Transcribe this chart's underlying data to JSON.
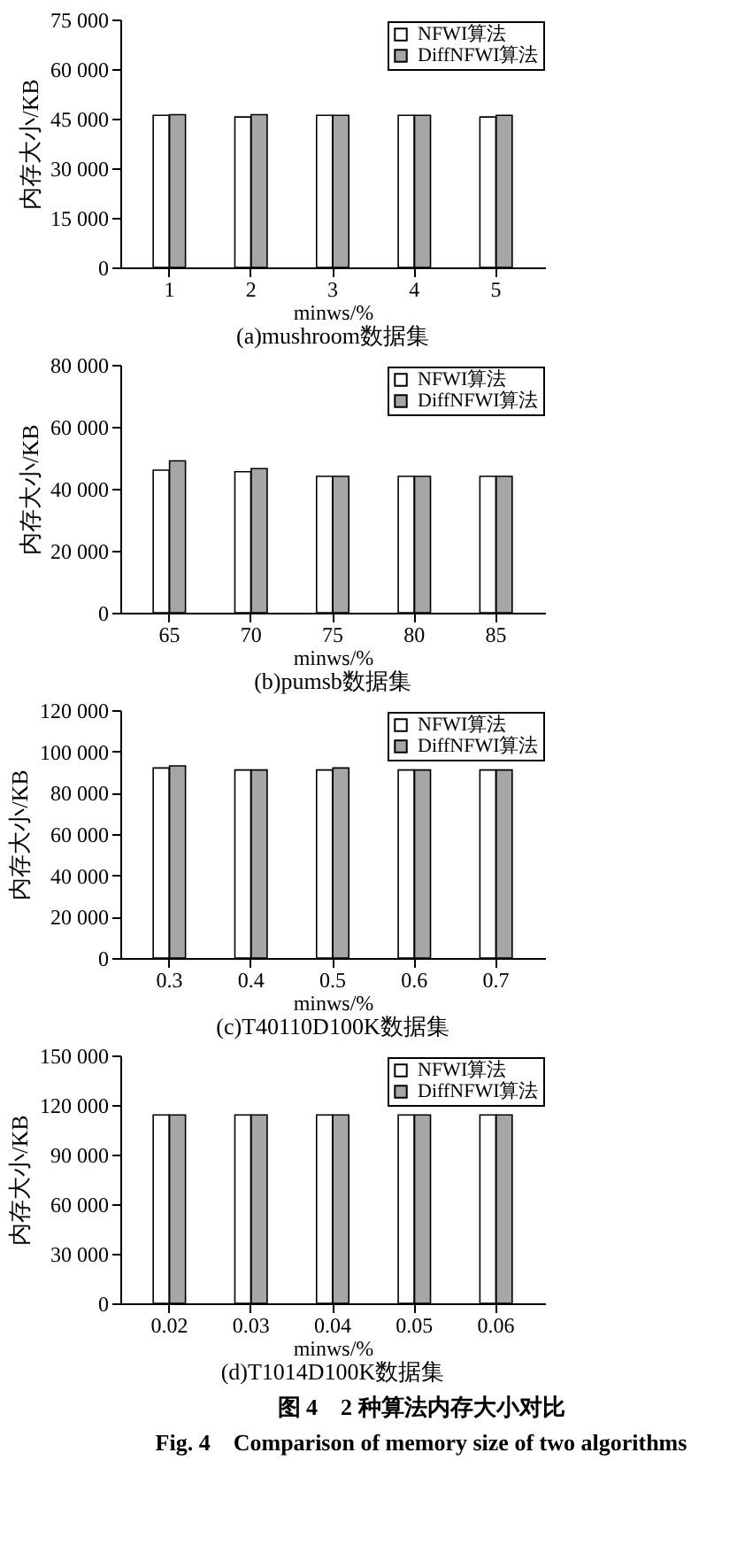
{
  "chart_data": [
    {
      "type": "bar",
      "title": "(a)mushroom数据集",
      "xlabel": "minws/%",
      "ylabel": "内存大小/KB",
      "categories": [
        "1",
        "2",
        "3",
        "4",
        "5"
      ],
      "series": [
        {
          "name": "NFWI算法",
          "color": "#ffffff",
          "values": [
            46000,
            45500,
            46000,
            46000,
            45500
          ]
        },
        {
          "name": "DiffNFWI算法",
          "color": "#a6a6a6",
          "values": [
            46200,
            46200,
            46000,
            46000,
            46000
          ]
        }
      ],
      "ylim": [
        0,
        75000
      ],
      "yticks": [
        0,
        {
          "value": 15000,
          "label": "15 000"
        },
        {
          "value": 30000,
          "label": "30 000"
        },
        {
          "value": 45000,
          "label": "45 000"
        },
        {
          "value": 60000,
          "label": "60 000"
        },
        {
          "value": 75000,
          "label": "75 000"
        }
      ],
      "grid": false,
      "legend": "top right"
    },
    {
      "type": "bar",
      "title": "(b)pumsb数据集",
      "xlabel": "minws/%",
      "ylabel": "内存大小/KB",
      "categories": [
        "65",
        "70",
        "75",
        "80",
        "85"
      ],
      "series": [
        {
          "name": "NFWI算法",
          "color": "#ffffff",
          "values": [
            46000,
            45500,
            44000,
            44000,
            44000
          ]
        },
        {
          "name": "DiffNFWI算法",
          "color": "#a6a6a6",
          "values": [
            49000,
            46500,
            44000,
            44000,
            44000
          ]
        }
      ],
      "ylim": [
        0,
        80000
      ],
      "yticks": [
        0,
        {
          "value": 20000,
          "label": "20 000"
        },
        {
          "value": 40000,
          "label": "40 000"
        },
        {
          "value": 60000,
          "label": "60 000"
        },
        {
          "value": 80000,
          "label": "80 000"
        }
      ],
      "grid": false,
      "legend": "top right"
    },
    {
      "type": "bar",
      "title": "(c)T40110D100K数据集",
      "xlabel": "minws/%",
      "ylabel": "内存大小/KB",
      "categories": [
        "0.3",
        "0.4",
        "0.5",
        "0.6",
        "0.7"
      ],
      "series": [
        {
          "name": "NFWI算法",
          "color": "#ffffff",
          "values": [
            92000,
            91000,
            91000,
            91000,
            91000
          ]
        },
        {
          "name": "DiffNFWI算法",
          "color": "#a6a6a6",
          "values": [
            93000,
            91000,
            92000,
            91000,
            91000
          ]
        }
      ],
      "ylim": [
        0,
        120000
      ],
      "yticks": [
        0,
        {
          "value": 20000,
          "label": "20 000"
        },
        {
          "value": 40000,
          "label": "40 000"
        },
        {
          "value": 60000,
          "label": "60 000"
        },
        {
          "value": 80000,
          "label": "80 000"
        },
        {
          "value": 100000,
          "label": "100 000"
        },
        {
          "value": 120000,
          "label": "120 000"
        }
      ],
      "grid": false,
      "legend": "top right"
    },
    {
      "type": "bar",
      "title": "(d)T1014D100K数据集",
      "xlabel": "minws/%",
      "ylabel": "内存大小/KB",
      "categories": [
        "0.02",
        "0.03",
        "0.04",
        "0.05",
        "0.06"
      ],
      "series": [
        {
          "name": "NFWI算法",
          "color": "#ffffff",
          "values": [
            114000,
            114000,
            114000,
            114000,
            114000
          ]
        },
        {
          "name": "DiffNFWI算法",
          "color": "#a6a6a6",
          "values": [
            114000,
            114000,
            114000,
            114000,
            114000
          ]
        }
      ],
      "ylim": [
        0,
        150000
      ],
      "yticks": [
        0,
        {
          "value": 30000,
          "label": "30 000"
        },
        {
          "value": 60000,
          "label": "60 000"
        },
        {
          "value": 90000,
          "label": "90 000"
        },
        {
          "value": 120000,
          "label": "120 000"
        },
        {
          "value": 150000,
          "label": "150 000"
        }
      ],
      "grid": false,
      "legend": "top right",
      "annotations": [
        "图 4　2 种算法内存大小对比",
        "Fig. 4　Comparison of memory size of two algorithms"
      ]
    }
  ]
}
